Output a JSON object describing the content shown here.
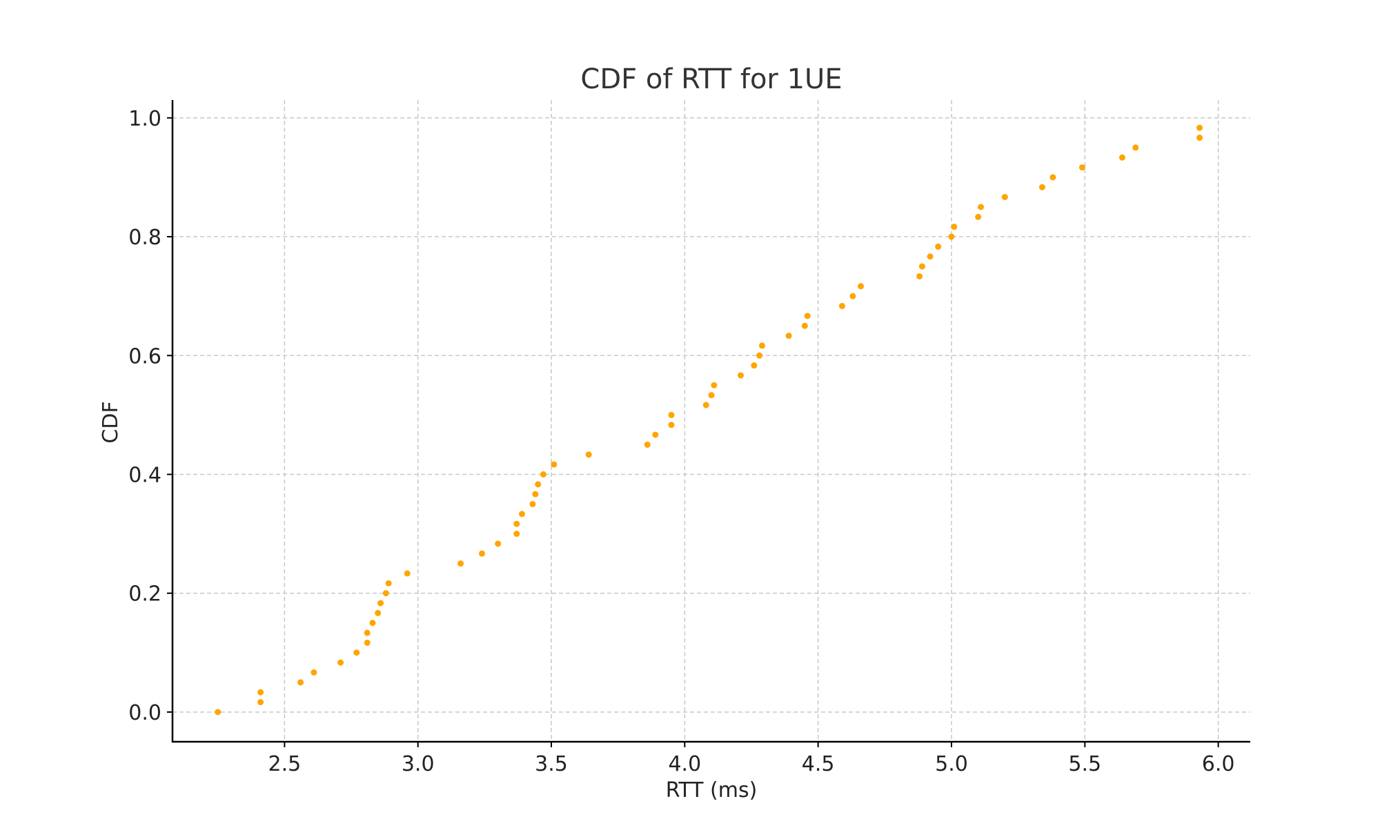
{
  "chart_data": {
    "type": "scatter",
    "title": "CDF of RTT for 1UE",
    "xlabel": "RTT (ms)",
    "ylabel": "CDF",
    "xlim": [
      2.08,
      6.12
    ],
    "ylim": [
      -0.05,
      1.03
    ],
    "xticks": [
      "2.5",
      "3.0",
      "3.5",
      "4.0",
      "4.5",
      "5.0",
      "5.5",
      "6.0"
    ],
    "yticks": [
      "0.0",
      "0.2",
      "0.4",
      "0.6",
      "0.8",
      "1.0"
    ],
    "grid": true,
    "marker_color": "#ffa500",
    "series": [
      {
        "x": [
          2.25,
          2.41,
          2.41,
          2.56,
          2.61,
          2.71,
          2.77,
          2.81,
          2.81,
          2.83,
          2.85,
          2.86,
          2.88,
          2.89,
          2.96,
          3.16,
          3.24,
          3.3,
          3.37,
          3.37,
          3.39,
          3.43,
          3.44,
          3.45,
          3.47,
          3.51,
          3.64,
          3.86,
          3.89,
          3.95,
          3.95,
          4.08,
          4.1,
          4.11,
          4.21,
          4.26,
          4.28,
          4.29,
          4.39,
          4.45,
          4.46,
          4.59,
          4.63,
          4.66,
          4.88,
          4.89,
          4.92,
          4.95,
          5.0,
          5.01,
          5.1,
          5.11,
          5.2,
          5.34,
          5.38,
          5.49,
          5.64,
          5.69,
          5.93,
          5.93
        ],
        "y": [
          0.0,
          0.0167,
          0.0333,
          0.05,
          0.0667,
          0.0833,
          0.1,
          0.1167,
          0.1333,
          0.15,
          0.1667,
          0.1833,
          0.2,
          0.2167,
          0.2333,
          0.25,
          0.2667,
          0.2833,
          0.3,
          0.3167,
          0.3333,
          0.35,
          0.3667,
          0.3833,
          0.4,
          0.4167,
          0.4333,
          0.45,
          0.4667,
          0.4833,
          0.5,
          0.5167,
          0.5333,
          0.55,
          0.5667,
          0.5833,
          0.6,
          0.6167,
          0.6333,
          0.65,
          0.6667,
          0.6833,
          0.7,
          0.7167,
          0.7333,
          0.75,
          0.7667,
          0.7833,
          0.8,
          0.8167,
          0.8333,
          0.85,
          0.8667,
          0.8833,
          0.9,
          0.9167,
          0.9333,
          0.95,
          0.9667,
          0.9833
        ]
      }
    ]
  }
}
